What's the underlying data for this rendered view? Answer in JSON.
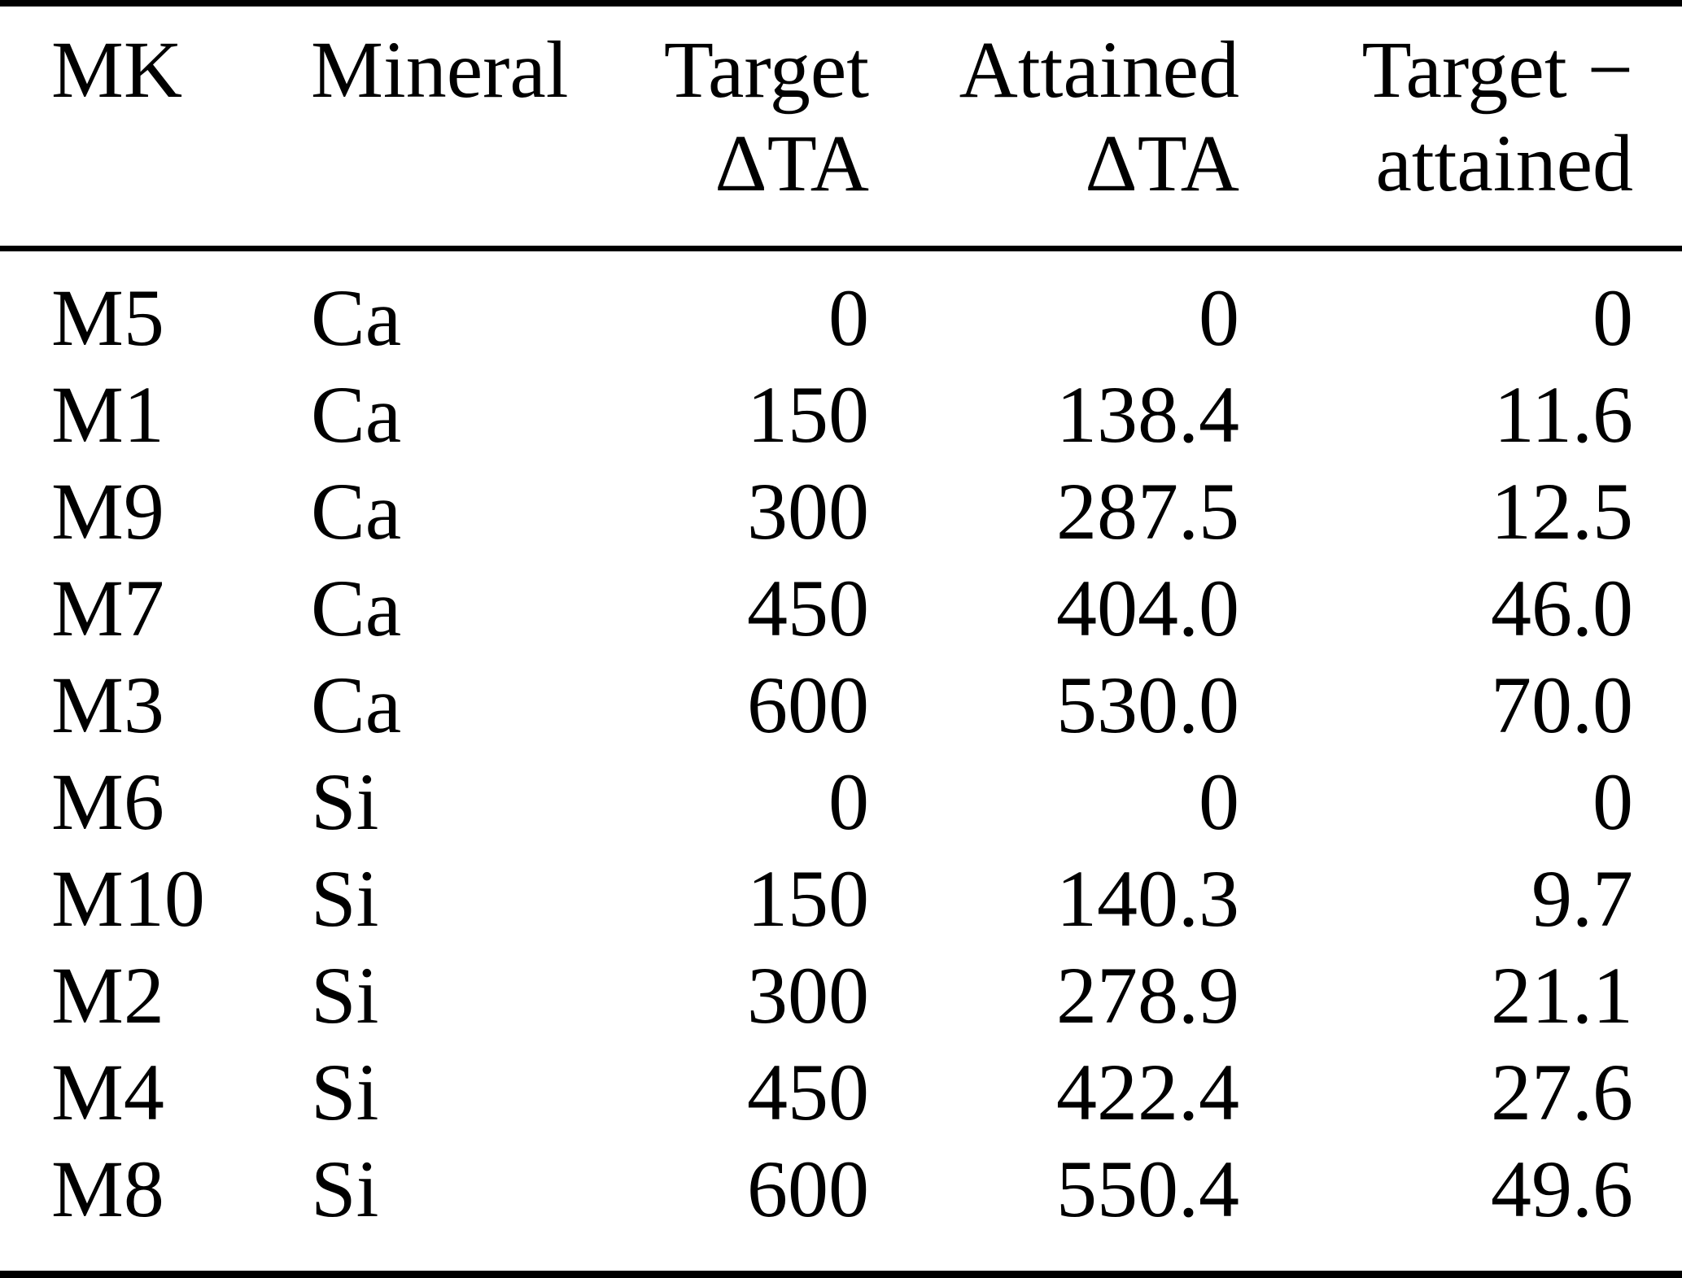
{
  "table": {
    "headers": [
      {
        "line1": "MK",
        "line2": ""
      },
      {
        "line1": "Mineral",
        "line2": ""
      },
      {
        "line1": "Target",
        "line2": "ΔTA"
      },
      {
        "line1": "Attained",
        "line2": "ΔTA"
      },
      {
        "line1": "Target −",
        "line2": "attained"
      }
    ],
    "column_keys": [
      "mk",
      "mineral",
      "target-dta",
      "attained-dta",
      "target-minus-attained"
    ],
    "rows": [
      [
        "M5",
        "Ca",
        "0",
        "0",
        "0"
      ],
      [
        "M1",
        "Ca",
        "150",
        "138.4",
        "11.6"
      ],
      [
        "M9",
        "Ca",
        "300",
        "287.5",
        "12.5"
      ],
      [
        "M7",
        "Ca",
        "450",
        "404.0",
        "46.0"
      ],
      [
        "M3",
        "Ca",
        "600",
        "530.0",
        "70.0"
      ],
      [
        "M6",
        "Si",
        "0",
        "0",
        "0"
      ],
      [
        "M10",
        "Si",
        "150",
        "140.3",
        "9.7"
      ],
      [
        "M2",
        "Si",
        "300",
        "278.9",
        "21.1"
      ],
      [
        "M4",
        "Si",
        "450",
        "422.4",
        "27.6"
      ],
      [
        "M8",
        "Si",
        "600",
        "550.4",
        "49.6"
      ]
    ]
  },
  "colors": {
    "text": "#000000",
    "background": "#ffffff",
    "rule": "#000000"
  }
}
